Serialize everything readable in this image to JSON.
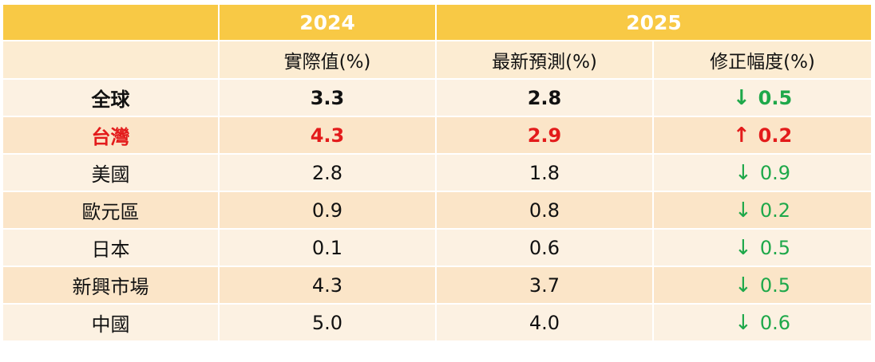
{
  "header": {
    "year_2024": "2024",
    "year_2025": "2025",
    "col_actual": "實際值(%)",
    "col_forecast": "最新預測(%)",
    "col_revision": "修正幅度(%)"
  },
  "rows": [
    {
      "region": "全球",
      "actual": "3.3",
      "forecast": "2.8",
      "arrow": "↓",
      "revision": "0.5"
    },
    {
      "region": "台灣",
      "actual": "4.3",
      "forecast": "2.9",
      "arrow": "↑",
      "revision": "0.2"
    },
    {
      "region": "美國",
      "actual": "2.8",
      "forecast": "1.8",
      "arrow": "↓",
      "revision": "0.9"
    },
    {
      "region": "歐元區",
      "actual": "0.9",
      "forecast": "0.8",
      "arrow": "↓",
      "revision": "0.2"
    },
    {
      "region": "日本",
      "actual": "0.1",
      "forecast": "0.6",
      "arrow": "↓",
      "revision": "0.5"
    },
    {
      "region": "新興市場",
      "actual": "4.3",
      "forecast": "3.7",
      "arrow": "↓",
      "revision": "0.5"
    },
    {
      "region": "中國",
      "actual": "5.0",
      "forecast": "4.0",
      "arrow": "↓",
      "revision": "0.6"
    }
  ],
  "colors": {
    "header_bg": "#f8c945",
    "subheader_bg": "#fcecd2",
    "row_light": "#fcf1e2",
    "row_dark": "#fbe5c8",
    "down_green": "#1ea84a",
    "taiwan_red": "#e31b1b"
  }
}
